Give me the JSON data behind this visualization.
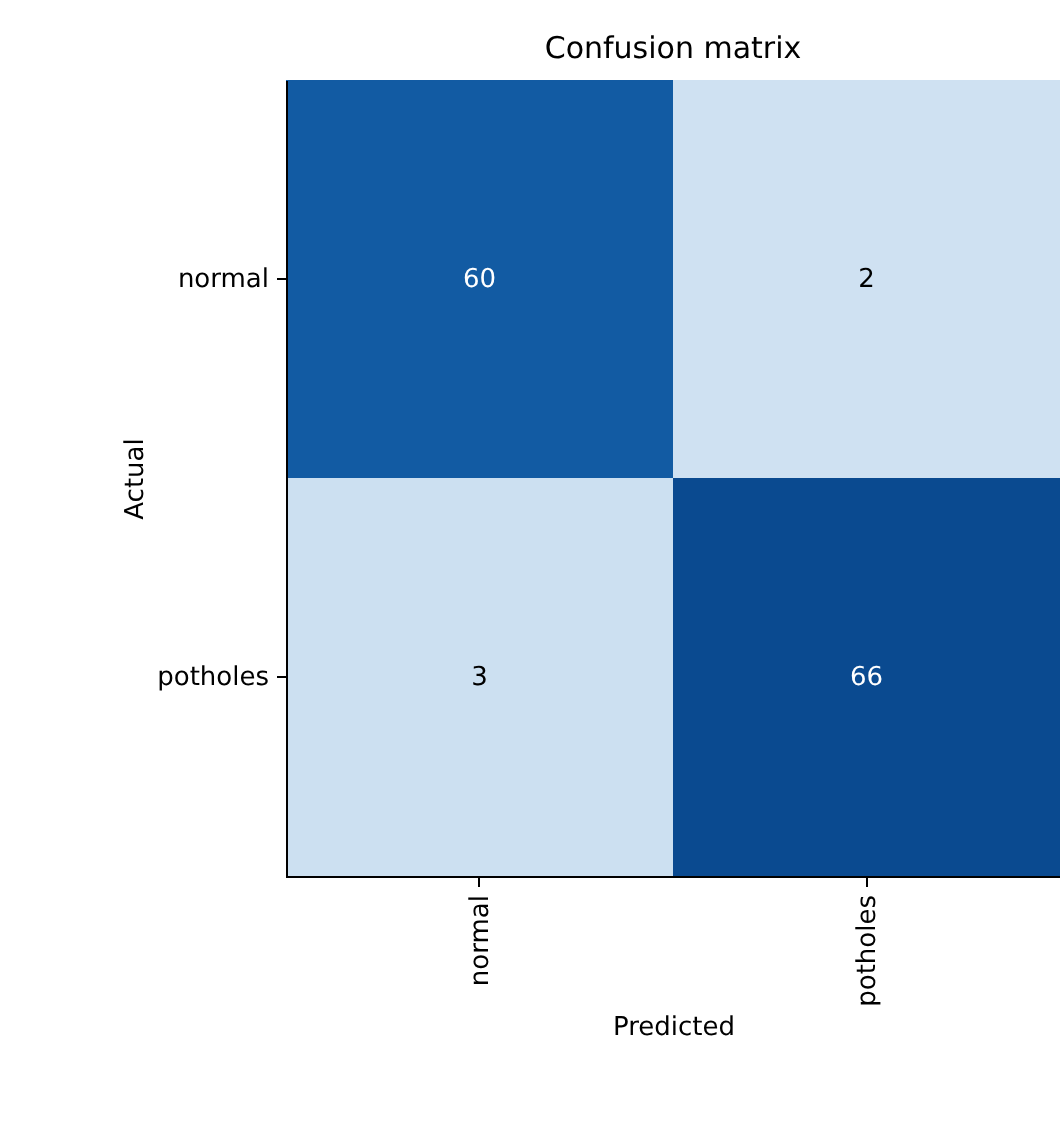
{
  "chart_data": {
    "type": "heatmap",
    "title": "Confusion matrix",
    "xlabel": "Predicted",
    "ylabel": "Actual",
    "categories": [
      "normal",
      "potholes"
    ],
    "y_categories": [
      "normal",
      "potholes"
    ],
    "cells": [
      [
        60,
        2
      ],
      [
        3,
        66
      ]
    ],
    "data_labels": true
  }
}
